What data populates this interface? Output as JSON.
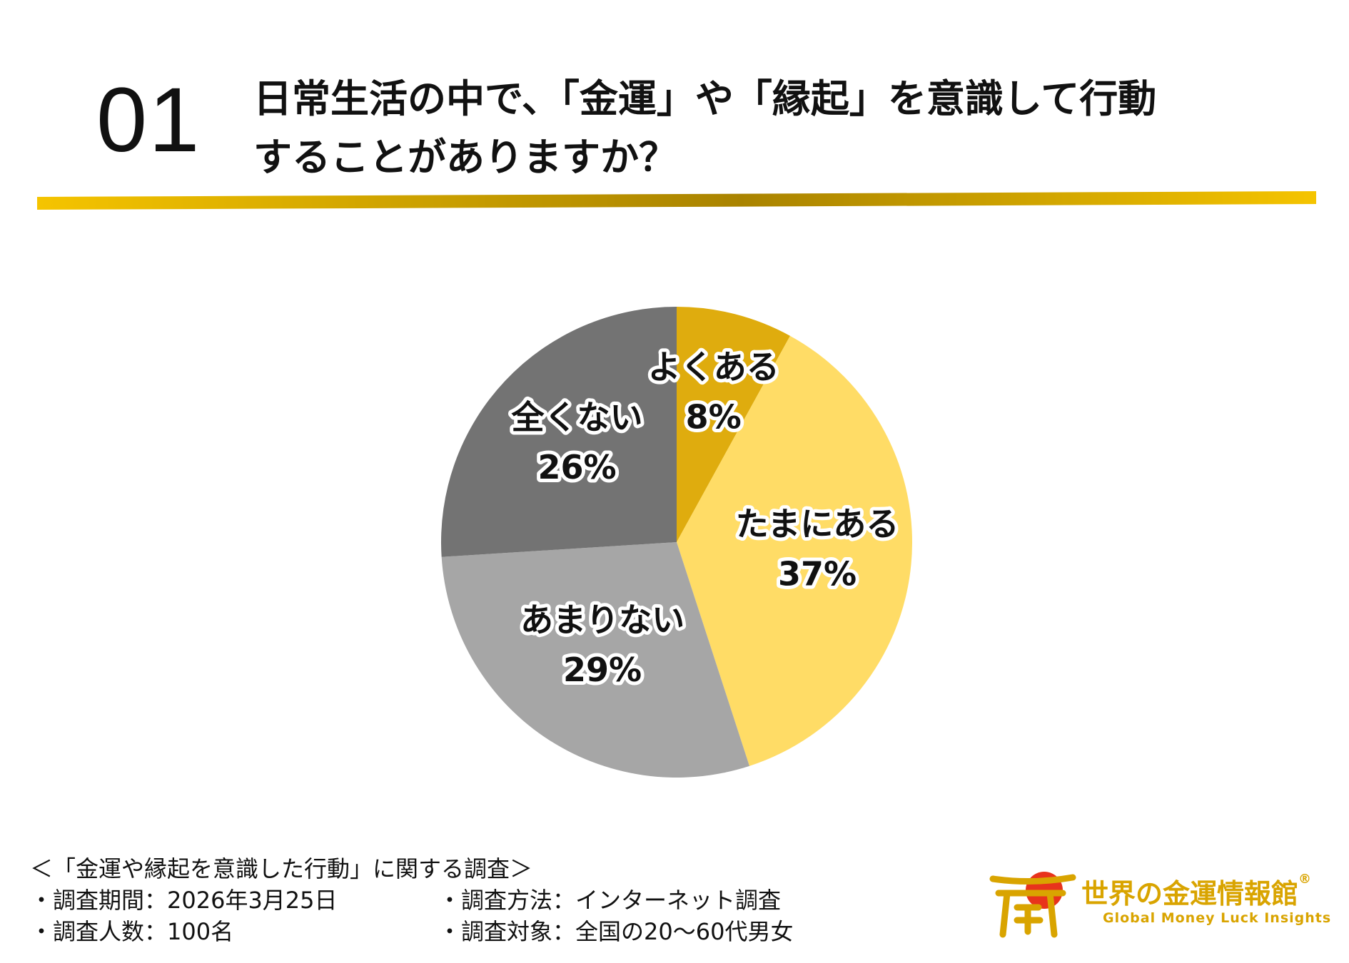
{
  "header": {
    "number": "01",
    "question_line1": "日常生活の中で、「金運」や「縁起」を意識して行動",
    "question_line2": "することがありますか？"
  },
  "colors": {
    "rule_start": "#f5c400",
    "rule_mid": "#a98300",
    "rule_end": "#f5c400"
  },
  "chart_data": {
    "type": "pie",
    "title": "日常生活の中で、「金運」や「縁起」を意識して行動することがありますか？",
    "unit": "%",
    "start": "12 o'clock, clockwise",
    "slices": [
      {
        "label": "よくある",
        "value": 8,
        "value_label": "8%",
        "color": "#dfac0e"
      },
      {
        "label": "たまにある",
        "value": 37,
        "value_label": "37%",
        "color": "#ffdc66"
      },
      {
        "label": "あまりない",
        "value": 29,
        "value_label": "29%",
        "color": "#a6a6a6"
      },
      {
        "label": "全くない",
        "value": 26,
        "value_label": "26%",
        "color": "#737373"
      }
    ]
  },
  "footer": {
    "survey_title": "＜「金運や縁起を意識した行動」に関する調査＞",
    "period": "・調査期間：2026年3月25日",
    "method": "・調査方法：インターネット調査",
    "respondents": "・調査人数：100名",
    "target": "・調査対象：全国の20～60代男女"
  },
  "logo": {
    "brand": "世界の金運情報館",
    "registered": "®",
    "tagline": "Global Money Luck Insights",
    "color": "#d9a400",
    "sun_color": "#e8331c"
  }
}
